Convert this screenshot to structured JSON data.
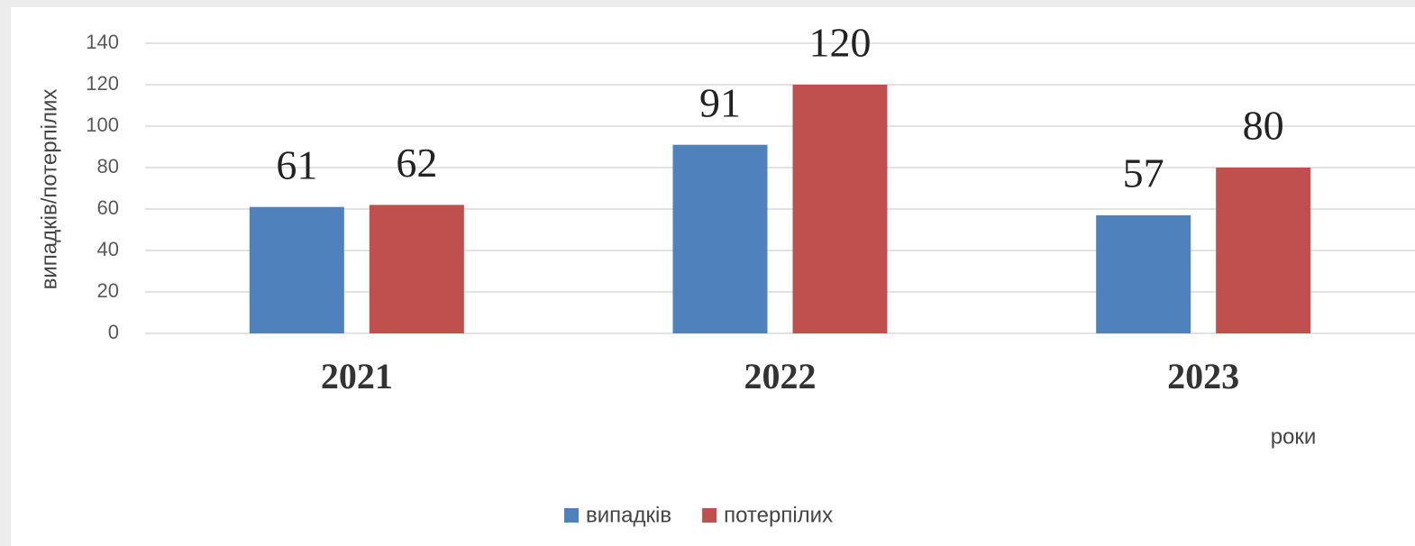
{
  "chart_data": {
    "type": "bar",
    "categories": [
      "2021",
      "2022",
      "2023"
    ],
    "series": [
      {
        "name": "випадків",
        "color": "#4f81bd",
        "values": [
          61,
          91,
          57
        ]
      },
      {
        "name": "потерпілих",
        "color": "#c0504d",
        "values": [
          62,
          120,
          80
        ]
      }
    ],
    "ylabel": "випадків/потерпілих",
    "xlabel": "роки",
    "ylim": [
      0,
      140
    ],
    "yticks": [
      0,
      20,
      40,
      60,
      80,
      100,
      120,
      140
    ],
    "grid": true,
    "legend": "bottom"
  }
}
